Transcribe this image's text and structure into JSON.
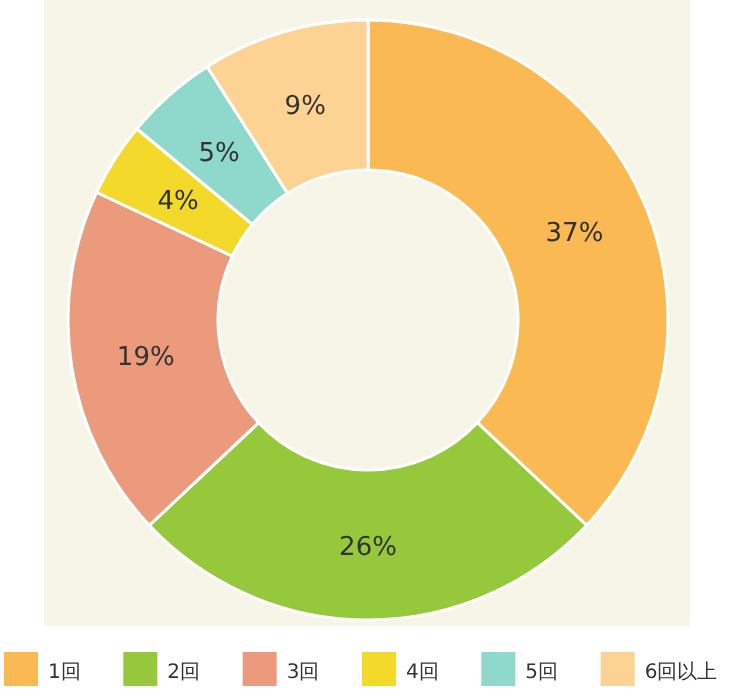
{
  "chart_data": {
    "type": "donut",
    "categories": [
      "1回",
      "2回",
      "3回",
      "4回",
      "5回",
      "6回以上"
    ],
    "values": [
      37,
      26,
      19,
      4,
      5,
      9
    ],
    "colors": [
      "#fbb954",
      "#95c93b",
      "#ec9a7c",
      "#f3d92a",
      "#8fd8cc",
      "#fdd394"
    ],
    "value_labels": [
      "37%",
      "26%",
      "19%",
      "4%",
      "5%",
      "9%"
    ],
    "legend": "bottom"
  }
}
